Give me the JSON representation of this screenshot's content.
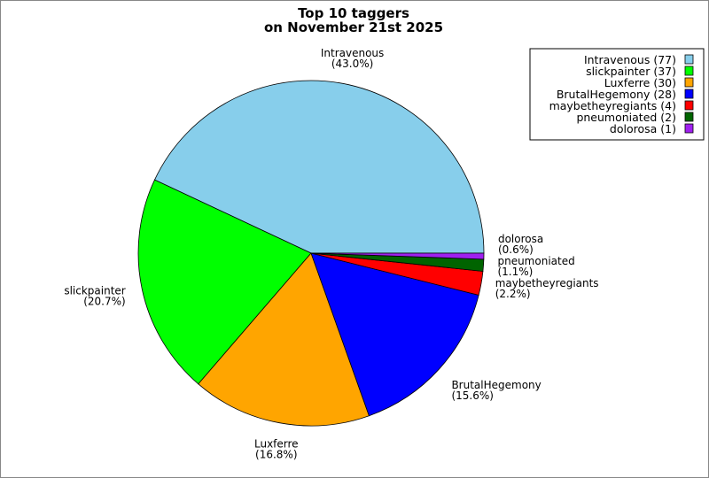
{
  "chart_data": {
    "type": "pie",
    "title": [
      "Top 10 taggers",
      "on November 21st 2025"
    ],
    "start_angle": "east, counterclockwise",
    "legend_position": "top-right",
    "slices": [
      {
        "label": "Intravenous",
        "value": 77,
        "percent": "(43.0%)",
        "legend": "Intravenous (77)",
        "color": "#87CEEB"
      },
      {
        "label": "slickpainter",
        "value": 37,
        "percent": "(20.7%)",
        "legend": "slickpainter (37)",
        "color": "#00FF00"
      },
      {
        "label": "Luxferre",
        "value": 30,
        "percent": "(16.8%)",
        "legend": "Luxferre (30)",
        "color": "#FFA500"
      },
      {
        "label": "BrutalHegemony",
        "value": 28,
        "percent": "(15.6%)",
        "legend": "BrutalHegemony (28)",
        "color": "#0000FF"
      },
      {
        "label": "maybetheyregiants",
        "value": 4,
        "percent": "(2.2%)",
        "legend": "maybetheyregiants (4)",
        "color": "#FF0000"
      },
      {
        "label": "pneumoniated",
        "value": 2,
        "percent": "(1.1%)",
        "legend": "pneumoniated (2)",
        "color": "#006400"
      },
      {
        "label": "dolorosa",
        "value": 1,
        "percent": "(0.6%)",
        "legend": "dolorosa (1)",
        "color": "#A020F0"
      }
    ]
  }
}
